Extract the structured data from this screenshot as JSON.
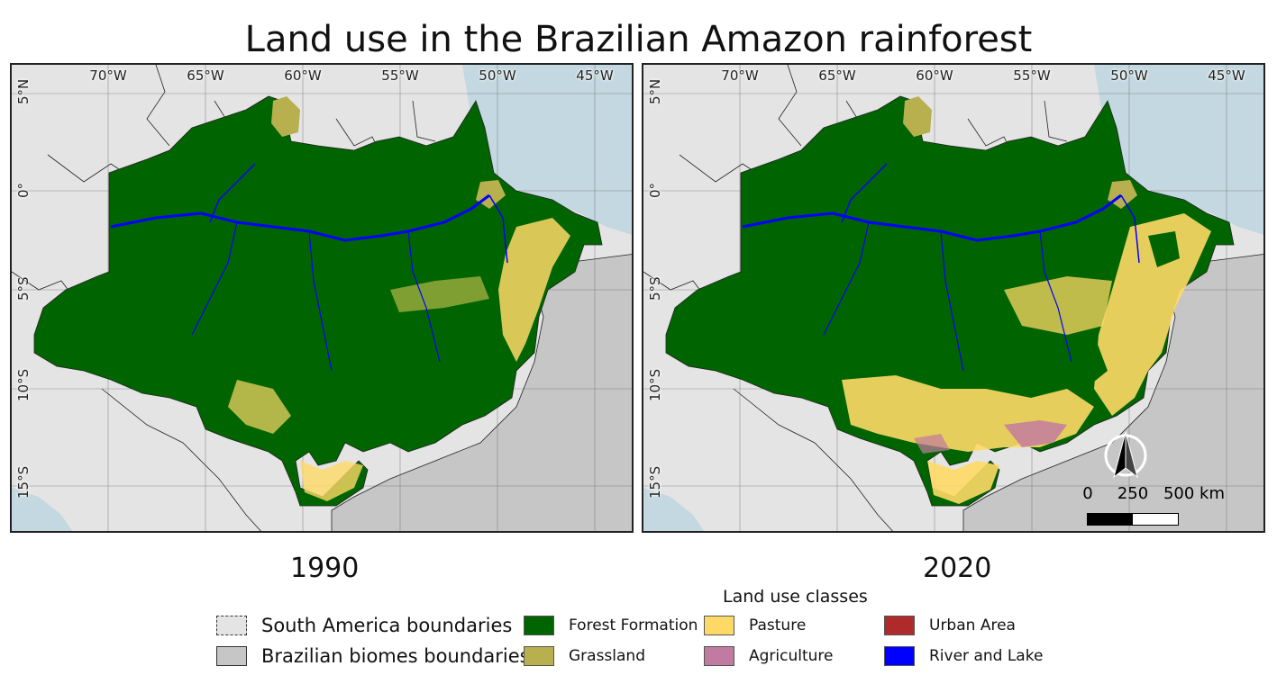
{
  "title": "Land use in the Brazilian Amazon rainforest",
  "maps": [
    {
      "year": "1990"
    },
    {
      "year": "2020"
    }
  ],
  "longitude_labels": [
    "70°W",
    "65°W",
    "60°W",
    "55°W",
    "50°W",
    "45°W"
  ],
  "latitude_labels": [
    "5°N",
    "0°",
    "5°S",
    "10°S",
    "15°S"
  ],
  "scale_bar": {
    "labels": [
      "0",
      "250",
      "500 km"
    ]
  },
  "north_arrow": "north-arrow-icon",
  "legend": {
    "title": "Land use classes",
    "boundaries": [
      {
        "label": "South America boundaries",
        "color": "#e4e4e4",
        "style": "dashed"
      },
      {
        "label": "Brazilian biomes boundaries",
        "color": "#c6c6c6",
        "style": "solid"
      }
    ],
    "classes": [
      {
        "label": "Forest Formation",
        "color": "#006400"
      },
      {
        "label": "Grassland",
        "color": "#b8af4f"
      },
      {
        "label": "Pasture",
        "color": "#ffd966"
      },
      {
        "label": "Agriculture",
        "color": "#c27ba0"
      },
      {
        "label": "Urban Area",
        "color": "#af2a2a"
      },
      {
        "label": "River and Lake",
        "color": "#0000ff"
      }
    ]
  },
  "colors": {
    "ocean": "#c3d8e0",
    "land": "#e4e4e4",
    "biome": "#c6c6c6"
  }
}
